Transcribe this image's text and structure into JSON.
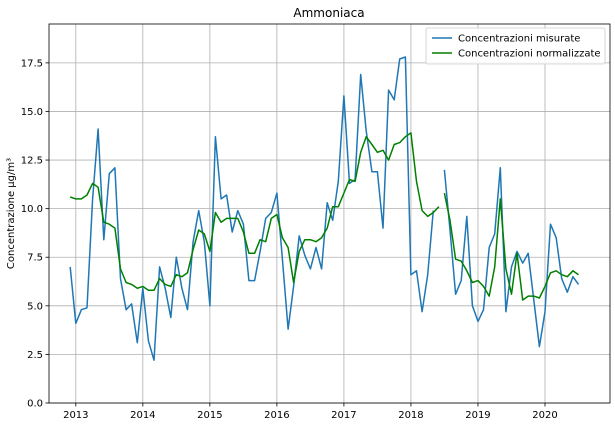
{
  "chart_data": {
    "type": "line",
    "title": "Ammoniaca",
    "xlabel": "",
    "ylabel": "Concentrazione μg/m³",
    "x_ticks": [
      "2013",
      "2014",
      "2015",
      "2016",
      "2017",
      "2018",
      "2019",
      "2020"
    ],
    "x_tick_values": [
      2013,
      2014,
      2015,
      2016,
      2017,
      2018,
      2019,
      2020
    ],
    "y_ticks": [
      "0.0",
      "2.5",
      "5.0",
      "7.5",
      "10.0",
      "12.5",
      "15.0",
      "17.5"
    ],
    "y_tick_values": [
      0,
      2.5,
      5,
      7.5,
      10,
      12.5,
      15,
      17.5
    ],
    "xlim": [
      2012.6,
      2020.97
    ],
    "ylim": [
      0,
      19.5
    ],
    "grid": true,
    "legend_position": "top-right",
    "series": [
      {
        "name": "Concentrazioni misurate",
        "color": "#1f77b4",
        "points": [
          [
            2012.917,
            7.0
          ],
          [
            2013.0,
            4.1
          ],
          [
            2013.083,
            4.8
          ],
          [
            2013.167,
            4.9
          ],
          [
            2013.25,
            10.5
          ],
          [
            2013.333,
            14.1
          ],
          [
            2013.417,
            8.4
          ],
          [
            2013.5,
            11.8
          ],
          [
            2013.583,
            12.1
          ],
          [
            2013.667,
            6.4
          ],
          [
            2013.75,
            4.8
          ],
          [
            2013.833,
            5.1
          ],
          [
            2013.917,
            3.1
          ],
          [
            2014.0,
            5.9
          ],
          [
            2014.083,
            3.2
          ],
          [
            2014.167,
            2.2
          ],
          [
            2014.25,
            7.0
          ],
          [
            2014.333,
            5.9
          ],
          [
            2014.417,
            4.4
          ],
          [
            2014.5,
            7.5
          ],
          [
            2014.583,
            5.9
          ],
          [
            2014.667,
            4.8
          ],
          [
            2014.75,
            8.3
          ],
          [
            2014.833,
            9.9
          ],
          [
            2014.917,
            8.3
          ],
          [
            2015.0,
            5.0
          ],
          [
            2015.083,
            13.7
          ],
          [
            2015.167,
            10.5
          ],
          [
            2015.25,
            10.7
          ],
          [
            2015.333,
            8.8
          ],
          [
            2015.417,
            9.9
          ],
          [
            2015.5,
            9.2
          ],
          [
            2015.583,
            6.3
          ],
          [
            2015.667,
            6.3
          ],
          [
            2015.75,
            7.8
          ],
          [
            2015.833,
            9.5
          ],
          [
            2015.917,
            9.8
          ],
          [
            2016.0,
            10.8
          ],
          [
            2016.083,
            7.4
          ],
          [
            2016.167,
            3.8
          ],
          [
            2016.25,
            6.0
          ],
          [
            2016.333,
            8.6
          ],
          [
            2016.417,
            7.6
          ],
          [
            2016.5,
            6.9
          ],
          [
            2016.583,
            8.0
          ],
          [
            2016.667,
            6.9
          ],
          [
            2016.75,
            10.3
          ],
          [
            2016.833,
            9.4
          ],
          [
            2016.917,
            11.4
          ],
          [
            2017.0,
            15.8
          ],
          [
            2017.083,
            11.3
          ],
          [
            2017.167,
            11.5
          ],
          [
            2017.25,
            16.9
          ],
          [
            2017.333,
            14.0
          ],
          [
            2017.417,
            11.9
          ],
          [
            2017.5,
            11.9
          ],
          [
            2017.583,
            9.0
          ],
          [
            2017.667,
            16.1
          ],
          [
            2017.75,
            15.6
          ],
          [
            2017.833,
            17.7
          ],
          [
            2017.917,
            17.8
          ],
          [
            2018.0,
            6.6
          ],
          [
            2018.083,
            6.8
          ],
          [
            2018.167,
            4.7
          ],
          [
            2018.25,
            6.6
          ],
          [
            2018.333,
            9.9
          ],
          null,
          [
            2018.5,
            12.0
          ],
          [
            2018.583,
            8.9
          ],
          [
            2018.667,
            5.6
          ],
          [
            2018.75,
            6.3
          ],
          [
            2018.833,
            9.6
          ],
          [
            2018.917,
            5.0
          ],
          [
            2019.0,
            4.2
          ],
          [
            2019.083,
            4.8
          ],
          [
            2019.167,
            8.0
          ],
          [
            2019.25,
            8.7
          ],
          [
            2019.333,
            12.1
          ],
          [
            2019.417,
            4.7
          ],
          [
            2019.5,
            7.0
          ],
          [
            2019.583,
            7.8
          ],
          [
            2019.667,
            7.2
          ],
          [
            2019.75,
            7.7
          ],
          [
            2019.833,
            5.3
          ],
          [
            2019.917,
            2.9
          ],
          [
            2020.0,
            4.7
          ],
          [
            2020.083,
            9.2
          ],
          [
            2020.167,
            8.5
          ],
          [
            2020.25,
            6.4
          ],
          [
            2020.333,
            5.7
          ],
          [
            2020.417,
            6.5
          ],
          [
            2020.5,
            6.1
          ]
        ]
      },
      {
        "name": "Concentrazioni normalizzate",
        "color": "#008000",
        "points": [
          [
            2012.917,
            10.6
          ],
          [
            2013.0,
            10.5
          ],
          [
            2013.083,
            10.5
          ],
          [
            2013.167,
            10.7
          ],
          [
            2013.25,
            11.3
          ],
          [
            2013.333,
            11.1
          ],
          [
            2013.417,
            9.3
          ],
          [
            2013.5,
            9.2
          ],
          [
            2013.583,
            9.0
          ],
          [
            2013.667,
            6.9
          ],
          [
            2013.75,
            6.2
          ],
          [
            2013.833,
            6.1
          ],
          [
            2013.917,
            5.9
          ],
          [
            2014.0,
            6.0
          ],
          [
            2014.083,
            5.8
          ],
          [
            2014.167,
            5.8
          ],
          [
            2014.25,
            6.4
          ],
          [
            2014.333,
            6.1
          ],
          [
            2014.417,
            6.0
          ],
          [
            2014.5,
            6.6
          ],
          [
            2014.583,
            6.5
          ],
          [
            2014.667,
            6.7
          ],
          [
            2014.75,
            7.9
          ],
          [
            2014.833,
            8.9
          ],
          [
            2014.917,
            8.7
          ],
          [
            2015.0,
            7.8
          ],
          [
            2015.083,
            9.8
          ],
          [
            2015.167,
            9.3
          ],
          [
            2015.25,
            9.5
          ],
          [
            2015.333,
            9.5
          ],
          [
            2015.417,
            9.5
          ],
          [
            2015.5,
            8.8
          ],
          [
            2015.583,
            7.7
          ],
          [
            2015.667,
            7.7
          ],
          [
            2015.75,
            8.4
          ],
          [
            2015.833,
            8.3
          ],
          [
            2015.917,
            9.5
          ],
          [
            2016.0,
            9.7
          ],
          [
            2016.083,
            8.5
          ],
          [
            2016.167,
            8.0
          ],
          [
            2016.25,
            6.2
          ],
          [
            2016.333,
            7.8
          ],
          [
            2016.417,
            8.4
          ],
          [
            2016.5,
            8.4
          ],
          [
            2016.583,
            8.3
          ],
          [
            2016.667,
            8.5
          ],
          [
            2016.75,
            9.0
          ],
          [
            2016.833,
            10.1
          ],
          [
            2016.917,
            10.1
          ],
          [
            2017.0,
            10.8
          ],
          [
            2017.083,
            11.5
          ],
          [
            2017.167,
            11.4
          ],
          [
            2017.25,
            12.9
          ],
          [
            2017.333,
            13.7
          ],
          [
            2017.417,
            13.3
          ],
          [
            2017.5,
            12.9
          ],
          [
            2017.583,
            13.0
          ],
          [
            2017.667,
            12.5
          ],
          [
            2017.75,
            13.3
          ],
          [
            2017.833,
            13.4
          ],
          [
            2017.917,
            13.7
          ],
          [
            2018.0,
            13.9
          ],
          [
            2018.083,
            11.4
          ],
          [
            2018.167,
            9.9
          ],
          [
            2018.25,
            9.6
          ],
          [
            2018.333,
            9.8
          ],
          [
            2018.417,
            10.1
          ],
          null,
          [
            2018.5,
            10.8
          ],
          [
            2018.583,
            9.4
          ],
          [
            2018.667,
            7.4
          ],
          [
            2018.75,
            7.3
          ],
          [
            2018.833,
            6.8
          ],
          [
            2018.917,
            6.2
          ],
          [
            2019.0,
            6.3
          ],
          [
            2019.083,
            6.0
          ],
          [
            2019.167,
            5.5
          ],
          [
            2019.25,
            7.0
          ],
          [
            2019.333,
            10.5
          ],
          [
            2019.417,
            6.9
          ],
          [
            2019.5,
            5.6
          ],
          [
            2019.583,
            7.7
          ],
          [
            2019.667,
            5.3
          ],
          [
            2019.75,
            5.5
          ],
          [
            2019.833,
            5.5
          ],
          [
            2019.917,
            5.4
          ],
          [
            2020.0,
            6.0
          ],
          [
            2020.083,
            6.7
          ],
          [
            2020.167,
            6.8
          ],
          [
            2020.25,
            6.6
          ],
          [
            2020.333,
            6.5
          ],
          [
            2020.417,
            6.8
          ],
          [
            2020.5,
            6.6
          ]
        ]
      }
    ]
  }
}
